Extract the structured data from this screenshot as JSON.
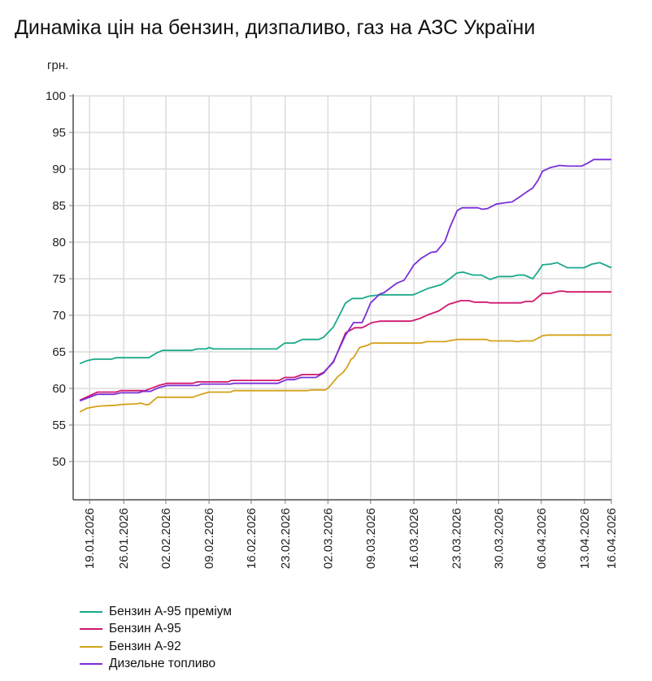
{
  "chart_data": {
    "type": "line",
    "title": "Динаміка цін на бензин, дизпаливо, газ на АЗС України",
    "ylabel": "грн.",
    "xlabel": "",
    "x_unit": "observation index (0 = 19.01.2026)",
    "xlim": [
      -2.7,
      85.6
    ],
    "ylim": [
      44.8,
      100
    ],
    "yticks": [
      50,
      55,
      60,
      65,
      70,
      75,
      80,
      85,
      90,
      95,
      100
    ],
    "xticks": [
      {
        "x": 0,
        "label": "19.01.2026"
      },
      {
        "x": 5.6,
        "label": "26.01.2026"
      },
      {
        "x": 12.5,
        "label": "02.02.2026"
      },
      {
        "x": 19.6,
        "label": "09.02.2026"
      },
      {
        "x": 26.5,
        "label": "16.02.2026"
      },
      {
        "x": 32.1,
        "label": "23.02.2026"
      },
      {
        "x": 39.1,
        "label": "02.03.2026"
      },
      {
        "x": 46.1,
        "label": "09.03.2026"
      },
      {
        "x": 53.2,
        "label": "16.03.2026"
      },
      {
        "x": 60.2,
        "label": "23.03.2026"
      },
      {
        "x": 67.1,
        "label": "30.03.2026"
      },
      {
        "x": 74.1,
        "label": "06.04.2026"
      },
      {
        "x": 81.2,
        "label": "13.04.2026"
      },
      {
        "x": 85.6,
        "label": "16.04.2026"
      }
    ],
    "grid": true,
    "legend_position": "bottom-left",
    "series": [
      {
        "name": "Бензин А-95 преміум",
        "color": "#1aa98b",
        "points": [
          [
            -1.6,
            63.4
          ],
          [
            -0.4,
            63.8
          ],
          [
            0.7,
            64.0
          ],
          [
            3.6,
            64.0
          ],
          [
            4.3,
            64.2
          ],
          [
            9.7,
            64.2
          ],
          [
            11.1,
            64.9
          ],
          [
            12,
            65.2
          ],
          [
            16.7,
            65.2
          ],
          [
            17.6,
            65.4
          ],
          [
            19.1,
            65.4
          ],
          [
            19.6,
            65.6
          ],
          [
            20.3,
            65.4
          ],
          [
            30.7,
            65.4
          ],
          [
            32,
            66.2
          ],
          [
            33.6,
            66.2
          ],
          [
            34.9,
            66.7
          ],
          [
            37.6,
            66.7
          ],
          [
            38.4,
            67
          ],
          [
            40,
            68.4
          ],
          [
            42,
            71.7
          ],
          [
            43.1,
            72.3
          ],
          [
            44.7,
            72.3
          ],
          [
            45.7,
            72.6
          ],
          [
            47.6,
            72.8
          ],
          [
            53.1,
            72.8
          ],
          [
            55.6,
            73.7
          ],
          [
            57.7,
            74.2
          ],
          [
            59.1,
            75
          ],
          [
            60.3,
            75.8
          ],
          [
            61.3,
            75.9
          ],
          [
            62.9,
            75.5
          ],
          [
            64.3,
            75.5
          ],
          [
            65.7,
            74.9
          ],
          [
            67.1,
            75.3
          ],
          [
            69.3,
            75.3
          ],
          [
            70.3,
            75.5
          ],
          [
            71.3,
            75.5
          ],
          [
            72.7,
            75
          ],
          [
            73.6,
            76
          ],
          [
            74.3,
            76.9
          ],
          [
            75.6,
            77
          ],
          [
            76.7,
            77.2
          ],
          [
            78.4,
            76.5
          ],
          [
            81.1,
            76.5
          ],
          [
            82.4,
            77
          ],
          [
            83.7,
            77.2
          ],
          [
            85.6,
            76.5
          ]
        ]
      },
      {
        "name": "Бензин А-95",
        "color": "#d0186e",
        "points": [
          [
            -1.6,
            58.4
          ],
          [
            -1.3,
            58.5
          ],
          [
            1.3,
            59.5
          ],
          [
            4.3,
            59.5
          ],
          [
            5.1,
            59.7
          ],
          [
            9.1,
            59.7
          ],
          [
            10.7,
            60.2
          ],
          [
            11.3,
            60.4
          ],
          [
            12.7,
            60.7
          ],
          [
            16.9,
            60.7
          ],
          [
            17.7,
            60.9
          ],
          [
            22.7,
            60.9
          ],
          [
            23.3,
            61.1
          ],
          [
            31.1,
            61.1
          ],
          [
            32,
            61.5
          ],
          [
            33.6,
            61.5
          ],
          [
            34.9,
            61.9
          ],
          [
            37.6,
            61.9
          ],
          [
            38.4,
            62.2
          ],
          [
            40,
            63.6
          ],
          [
            42,
            67.6
          ],
          [
            43.5,
            68.3
          ],
          [
            44.7,
            68.3
          ],
          [
            46.3,
            69
          ],
          [
            47.6,
            69.2
          ],
          [
            52.7,
            69.2
          ],
          [
            54.3,
            69.6
          ],
          [
            55.6,
            70.1
          ],
          [
            57.3,
            70.6
          ],
          [
            58.9,
            71.5
          ],
          [
            60.9,
            72
          ],
          [
            62.3,
            72
          ],
          [
            63.1,
            71.8
          ],
          [
            65.1,
            71.8
          ],
          [
            65.7,
            71.7
          ],
          [
            70.7,
            71.7
          ],
          [
            71.6,
            71.9
          ],
          [
            72.7,
            71.9
          ],
          [
            73.3,
            72.3
          ],
          [
            74.3,
            73
          ],
          [
            75.6,
            73
          ],
          [
            77.1,
            73.3
          ],
          [
            77.7,
            73.3
          ],
          [
            78.4,
            73.2
          ],
          [
            85.6,
            73.2
          ]
        ]
      },
      {
        "name": "Бензин А-92",
        "color": "#d4a21a",
        "points": [
          [
            -1.6,
            56.8
          ],
          [
            -0.4,
            57.3
          ],
          [
            0.9,
            57.5
          ],
          [
            1.7,
            57.6
          ],
          [
            4.3,
            57.7
          ],
          [
            5.1,
            57.8
          ],
          [
            7.7,
            57.9
          ],
          [
            8.4,
            58.0
          ],
          [
            9.1,
            57.8
          ],
          [
            9.7,
            57.8
          ],
          [
            11.1,
            58.8
          ],
          [
            16.9,
            58.8
          ],
          [
            18.3,
            59.2
          ],
          [
            19.6,
            59.5
          ],
          [
            23.1,
            59.5
          ],
          [
            23.7,
            59.7
          ],
          [
            35.7,
            59.7
          ],
          [
            36.4,
            59.8
          ],
          [
            38.7,
            59.8
          ],
          [
            39.3,
            60.2
          ],
          [
            40,
            60.9
          ],
          [
            40.7,
            61.6
          ],
          [
            41.6,
            62.2
          ],
          [
            42.3,
            63
          ],
          [
            42.9,
            64
          ],
          [
            43.3,
            64.2
          ],
          [
            44.3,
            65.6
          ],
          [
            45.6,
            65.9
          ],
          [
            46.3,
            66.2
          ],
          [
            54.4,
            66.2
          ],
          [
            55.3,
            66.4
          ],
          [
            58.3,
            66.4
          ],
          [
            58.9,
            66.5
          ],
          [
            60.3,
            66.7
          ],
          [
            65.1,
            66.7
          ],
          [
            65.7,
            66.5
          ],
          [
            69.3,
            66.5
          ],
          [
            70.3,
            66.4
          ],
          [
            70.9,
            66.5
          ],
          [
            72.7,
            66.5
          ],
          [
            74.3,
            67.2
          ],
          [
            75.1,
            67.3
          ],
          [
            85.6,
            67.3
          ]
        ]
      },
      {
        "name": "Дизельне топливо",
        "color": "#7a2fd8",
        "points": [
          [
            -1.6,
            58.3
          ],
          [
            1.3,
            59.2
          ],
          [
            4,
            59.2
          ],
          [
            5.1,
            59.4
          ],
          [
            8,
            59.4
          ],
          [
            8.7,
            59.6
          ],
          [
            10,
            59.6
          ],
          [
            11.3,
            60.1
          ],
          [
            12.7,
            60.4
          ],
          [
            17.7,
            60.4
          ],
          [
            18.3,
            60.6
          ],
          [
            23.1,
            60.6
          ],
          [
            23.7,
            60.7
          ],
          [
            30.9,
            60.7
          ],
          [
            32.3,
            61.2
          ],
          [
            33.6,
            61.2
          ],
          [
            34.7,
            61.5
          ],
          [
            37.1,
            61.5
          ],
          [
            38.4,
            62.1
          ],
          [
            40,
            63.7
          ],
          [
            42,
            67.3
          ],
          [
            43.3,
            69
          ],
          [
            44.7,
            69
          ],
          [
            45.3,
            70.1
          ],
          [
            46.1,
            71.7
          ],
          [
            47.6,
            72.9
          ],
          [
            48.3,
            73.1
          ],
          [
            50.4,
            74.4
          ],
          [
            51.6,
            74.8
          ],
          [
            52.3,
            75.7
          ],
          [
            53.2,
            76.9
          ],
          [
            54.4,
            77.8
          ],
          [
            56,
            78.6
          ],
          [
            56.9,
            78.7
          ],
          [
            58.3,
            80.1
          ],
          [
            59.1,
            82
          ],
          [
            60.3,
            84.3
          ],
          [
            61.1,
            84.7
          ],
          [
            63.7,
            84.7
          ],
          [
            64.4,
            84.5
          ],
          [
            65.3,
            84.6
          ],
          [
            66.7,
            85.2
          ],
          [
            68.3,
            85.4
          ],
          [
            69.3,
            85.5
          ],
          [
            70.4,
            86.1
          ],
          [
            71.6,
            86.8
          ],
          [
            72.7,
            87.4
          ],
          [
            73.6,
            88.5
          ],
          [
            74.3,
            89.7
          ],
          [
            75.6,
            90.2
          ],
          [
            77.1,
            90.5
          ],
          [
            78.4,
            90.4
          ],
          [
            80.7,
            90.4
          ],
          [
            81.7,
            90.8
          ],
          [
            82.7,
            91.3
          ],
          [
            85.6,
            91.3
          ]
        ]
      }
    ]
  }
}
